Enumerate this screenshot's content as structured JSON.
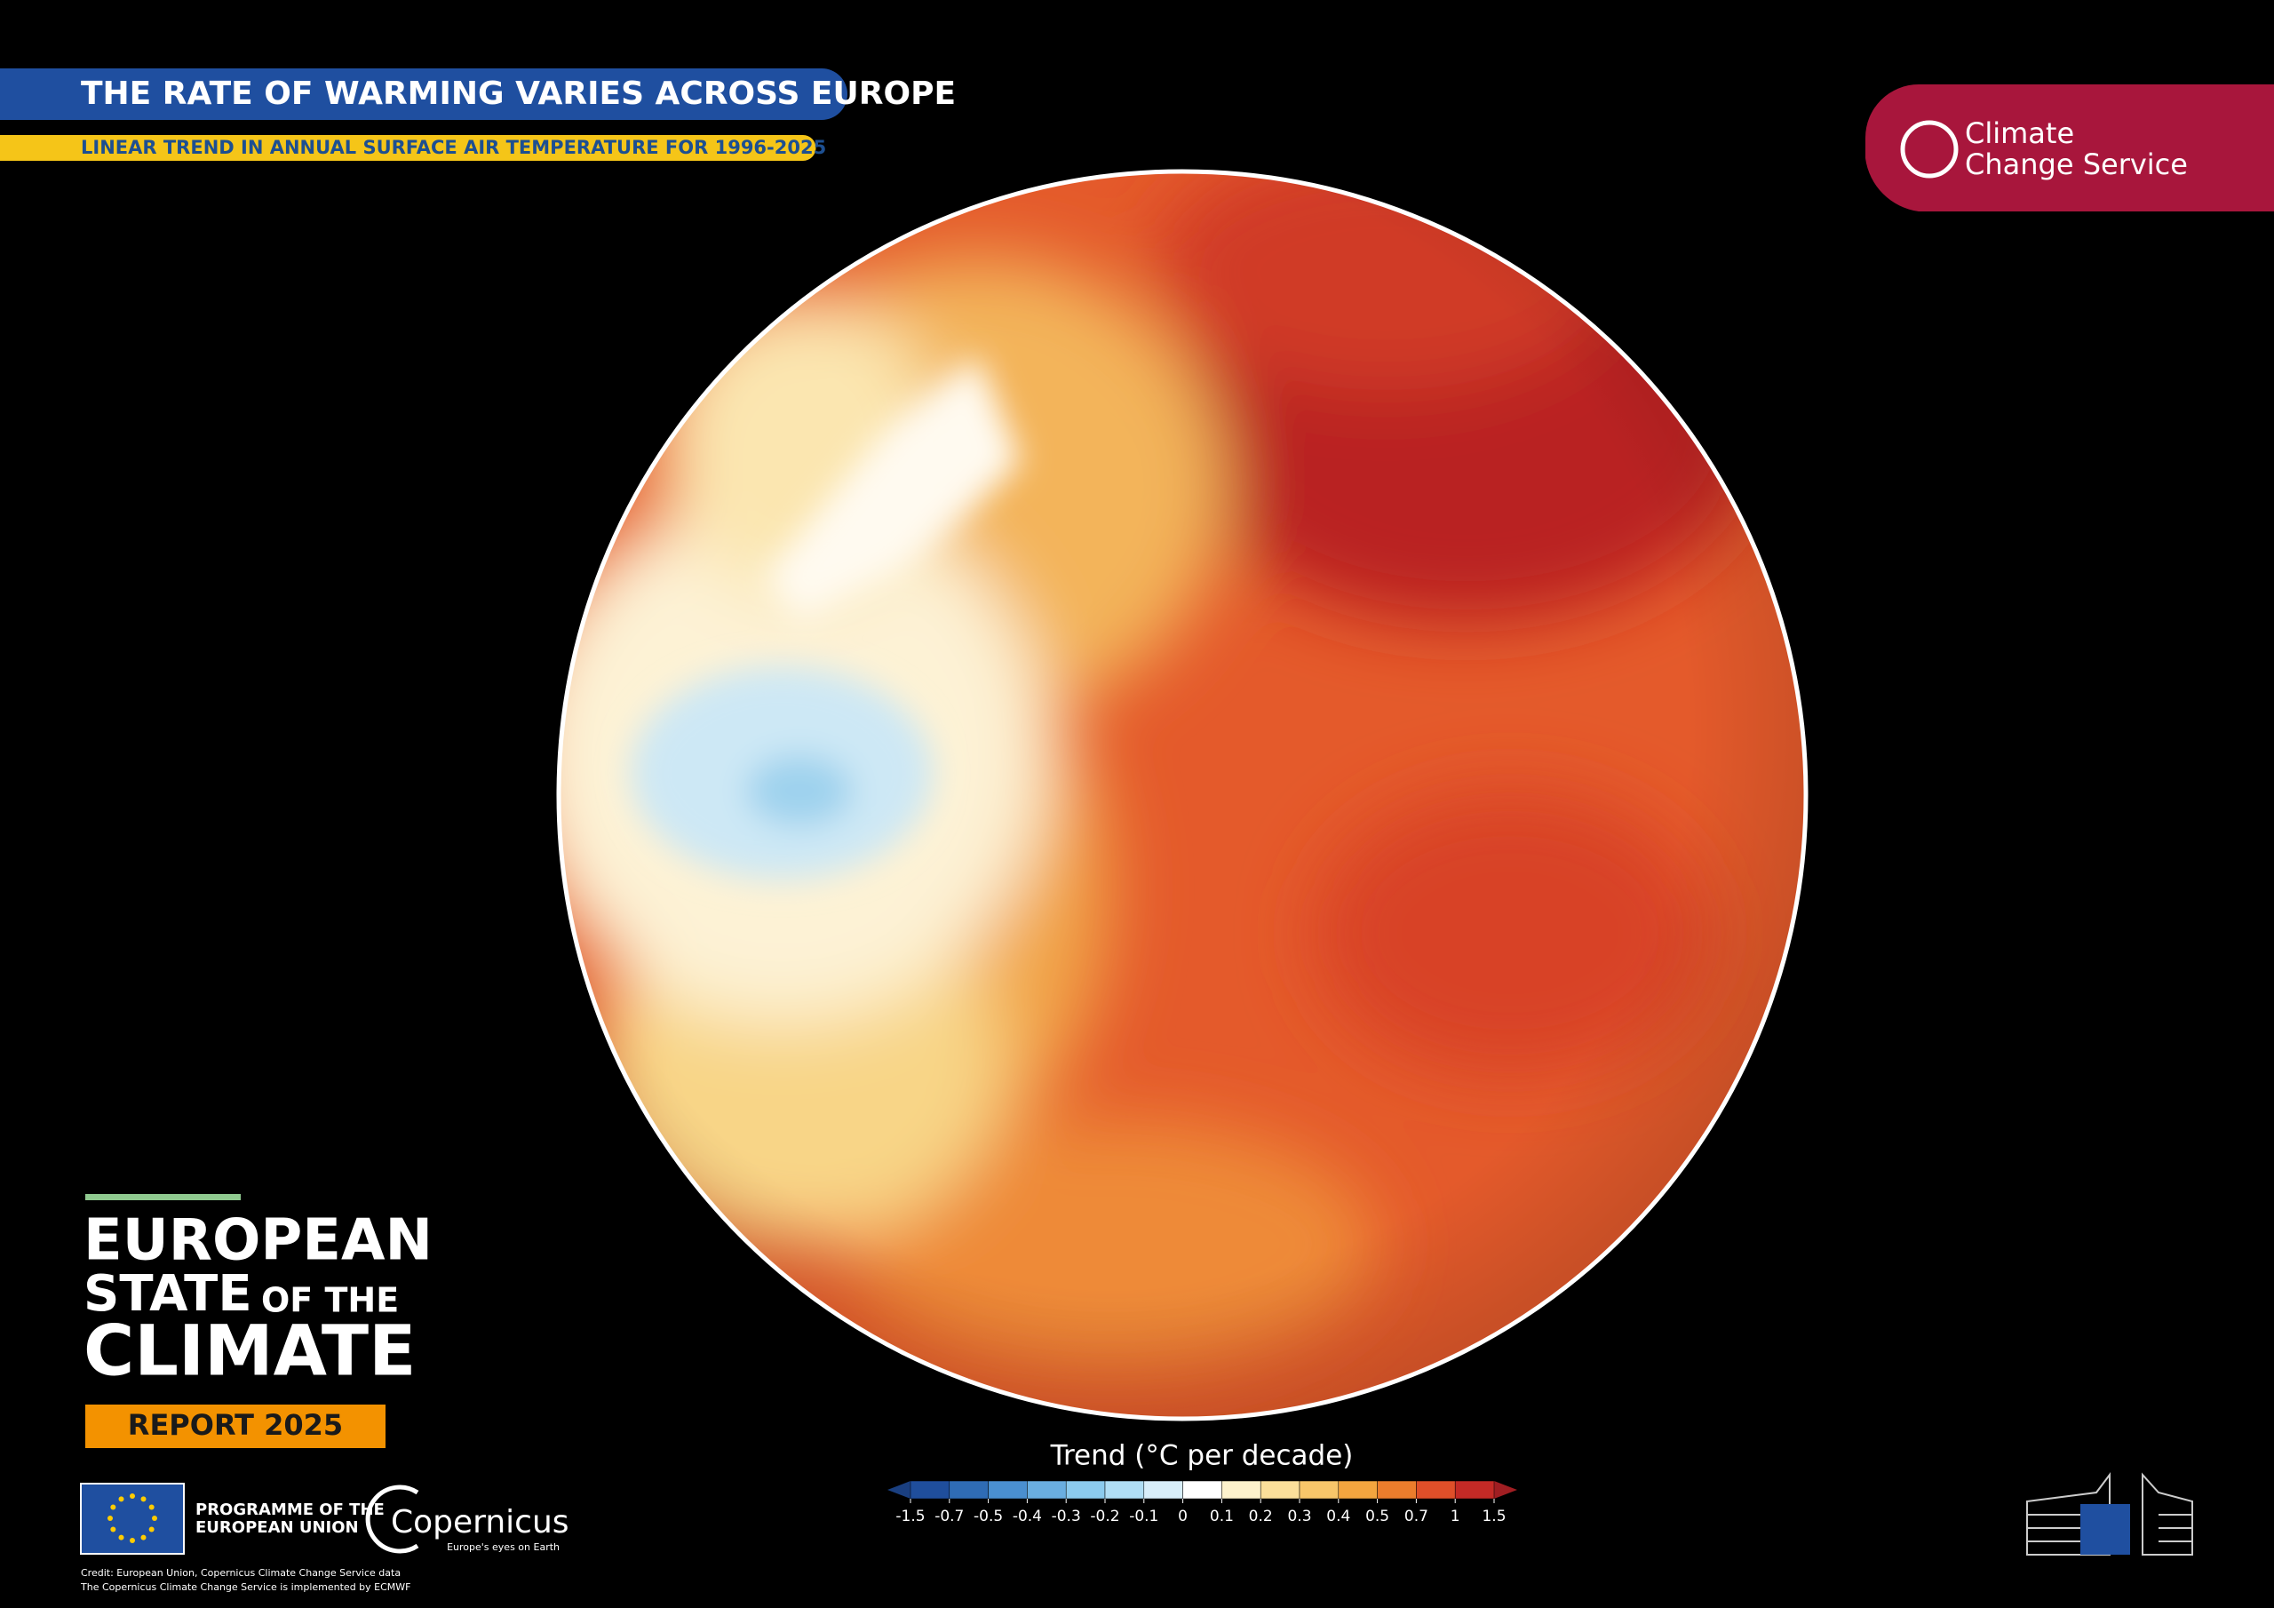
{
  "header": {
    "title": "THE RATE OF WARMING VARIES ACROSS EUROPE",
    "subtitle": "LINEAR TREND IN ANNUAL SURFACE AIR TEMPERATURE FOR 1996-2025"
  },
  "service_logo": {
    "line1": "Climate",
    "line2": "Change Service"
  },
  "report": {
    "line1": "EUROPEAN",
    "line2": "STATE",
    "line2b": "OF THE",
    "line3": "CLIMATE",
    "badge": "REPORT 2025"
  },
  "legend": {
    "title": "Trend (°C per decade)",
    "ticks": [
      -1.5,
      -0.7,
      -0.5,
      -0.4,
      -0.3,
      -0.2,
      -0.1,
      0,
      0.1,
      0.2,
      0.3,
      0.4,
      0.5,
      0.7,
      1,
      1.5
    ],
    "colors": [
      "#1f4e9c",
      "#2f6cb5",
      "#4a8fd0",
      "#6aaee0",
      "#8ccbee",
      "#b0def5",
      "#d8eefa",
      "#ffffff",
      "#fdf2cc",
      "#fbdf9a",
      "#f8c66a",
      "#f3a53f",
      "#ec7d2c",
      "#df4f29",
      "#c42a26"
    ],
    "under_color": "#1a3f80",
    "over_color": "#a01e22"
  },
  "footer": {
    "programme_line1": "PROGRAMME OF THE",
    "programme_line2": "EUROPEAN UNION",
    "copernicus": "Copernicus",
    "copernicus_tagline": "Europe's eyes on Earth",
    "credit_line1": "Credit: European Union, Copernicus Climate Change Service data",
    "credit_line2": "The Copernicus Climate Change Service is implemented by ECMWF"
  }
}
